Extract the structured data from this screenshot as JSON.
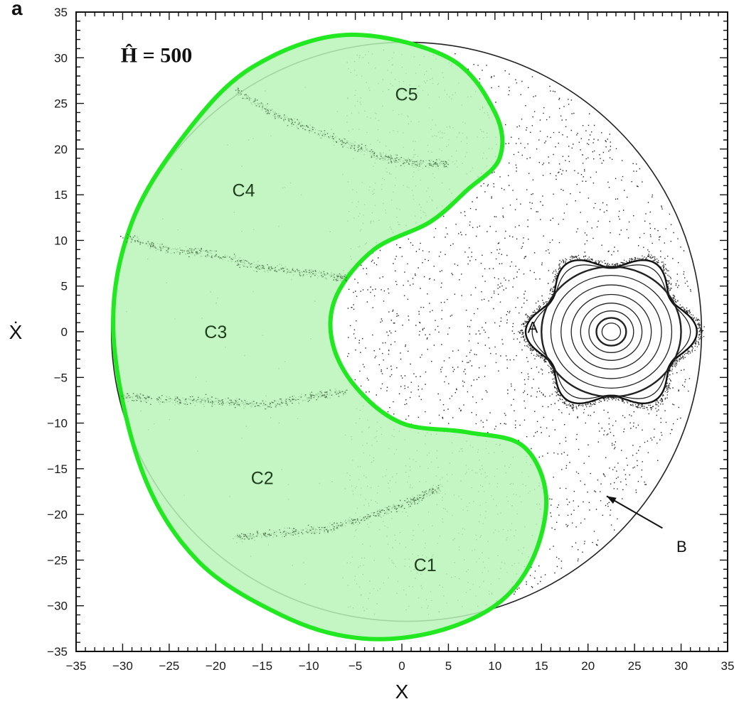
{
  "panel_label": "a",
  "chart_data": {
    "type": "scatter",
    "title": "",
    "annotation_energy": "Ĥ = 500",
    "xlabel": "X",
    "ylabel": "Ẋ",
    "xlim": [
      -35,
      35
    ],
    "ylim": [
      -35,
      35
    ],
    "xticks": [
      -35,
      -30,
      -25,
      -20,
      -15,
      -10,
      -5,
      0,
      5,
      10,
      15,
      20,
      25,
      30,
      35
    ],
    "yticks": [
      -35,
      -30,
      -25,
      -20,
      -15,
      -10,
      -5,
      0,
      5,
      10,
      15,
      20,
      25,
      30,
      35
    ],
    "xtick_labels": [
      "−35",
      "−30",
      "−25",
      "−20",
      "−15",
      "−10",
      "−5",
      "0",
      "5",
      "10",
      "15",
      "20",
      "25",
      "30",
      "35"
    ],
    "ytick_labels": [
      "−35",
      "−30",
      "−25",
      "−20",
      "−15",
      "−10",
      "−5",
      "0",
      "5",
      "10",
      "15",
      "20",
      "25",
      "30",
      "35"
    ],
    "grid": false,
    "boundary": {
      "center": [
        0.5,
        0
      ],
      "radius": 31.7
    },
    "island": {
      "label": "A",
      "label_at": [
        13.5,
        0.5
      ],
      "center": [
        22.5,
        0
      ],
      "invariant_curve_radii": [
        1.0,
        1.6,
        2.4,
        3.3,
        4.3,
        5.4,
        6.5,
        7.5
      ]
    },
    "arrow": {
      "label": "B",
      "label_at": [
        29.5,
        -23.5
      ],
      "from": [
        28,
        -21.5
      ],
      "to": [
        22,
        -18
      ]
    },
    "highlight_region": {
      "color": "#22e822",
      "fill": "#b9f5b9",
      "outline": [
        [
          -6,
          32.5
        ],
        [
          5,
          30
        ],
        [
          10,
          24
        ],
        [
          10.5,
          19
        ],
        [
          7,
          15.5
        ],
        [
          3,
          12
        ],
        [
          -3,
          9
        ],
        [
          -7,
          4
        ],
        [
          -7.5,
          -1
        ],
        [
          -5,
          -6
        ],
        [
          0,
          -10
        ],
        [
          7,
          -11
        ],
        [
          13,
          -12.5
        ],
        [
          15.5,
          -18
        ],
        [
          14,
          -25
        ],
        [
          10,
          -30
        ],
        [
          3,
          -33
        ],
        [
          -5,
          -33.5
        ],
        [
          -13,
          -31
        ],
        [
          -22,
          -25
        ],
        [
          -28,
          -15
        ],
        [
          -31,
          0
        ],
        [
          -29,
          12
        ],
        [
          -23,
          22
        ],
        [
          -16,
          29
        ]
      ]
    },
    "regions": [
      {
        "label": "C1",
        "at": [
          2.5,
          -25.5
        ]
      },
      {
        "label": "C2",
        "at": [
          -15,
          -16
        ]
      },
      {
        "label": "C3",
        "at": [
          -20,
          0
        ]
      },
      {
        "label": "C4",
        "at": [
          -17,
          15.5
        ]
      },
      {
        "label": "C5",
        "at": [
          0.5,
          26
        ]
      }
    ],
    "chains": [
      [
        [
          -18,
          26.5
        ],
        [
          -13,
          23.5
        ],
        [
          -8,
          21.5
        ],
        [
          -3,
          19.5
        ],
        [
          1,
          18.5
        ],
        [
          5,
          18.5
        ]
      ],
      [
        [
          -30,
          10.5
        ],
        [
          -25,
          9.0
        ],
        [
          -20,
          8.5
        ],
        [
          -15,
          7.0
        ],
        [
          -10,
          6.5
        ],
        [
          -6,
          6.0
        ]
      ],
      [
        [
          -30,
          -7.0
        ],
        [
          -25,
          -7.5
        ],
        [
          -20,
          -7.5
        ],
        [
          -15,
          -8.0
        ],
        [
          -10,
          -7.0
        ],
        [
          -6,
          -6.5
        ]
      ],
      [
        [
          -18,
          -22.5
        ],
        [
          -13,
          -22.0
        ],
        [
          -8,
          -21.5
        ],
        [
          -3,
          -20.0
        ],
        [
          1,
          -18.5
        ],
        [
          4,
          -17.0
        ]
      ]
    ]
  }
}
